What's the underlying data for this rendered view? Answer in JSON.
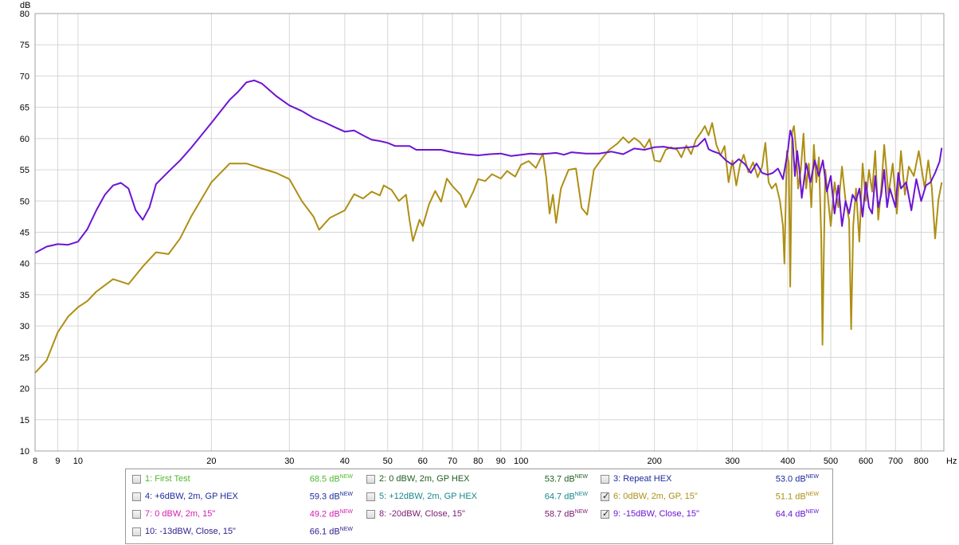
{
  "chart_data": {
    "type": "line",
    "title": "",
    "xlabel": "Hz",
    "ylabel": "dB",
    "x_scale": "log",
    "xlim": [
      8,
      900
    ],
    "ylim": [
      10,
      80
    ],
    "grid": true,
    "y_ticks": [
      "10",
      "15",
      "20",
      "25",
      "30",
      "35",
      "40",
      "45",
      "50",
      "55",
      "60",
      "65",
      "70",
      "75",
      "80"
    ],
    "x_ticks": [
      "8",
      "9",
      "10",
      "20",
      "30",
      "40",
      "50",
      "60",
      "70",
      "80",
      "90",
      "100",
      "200",
      "300",
      "400",
      "500",
      "600",
      "700",
      "800"
    ],
    "legend_placement": "bottom",
    "series": [
      {
        "name": "6: 0dBW, 2m, GP, 15\"",
        "color": "#ae8f14",
        "points": [
          [
            8,
            22.5
          ],
          [
            8.5,
            24.5
          ],
          [
            9,
            29
          ],
          [
            9.5,
            31.5
          ],
          [
            10,
            33
          ],
          [
            10.5,
            34
          ],
          [
            11,
            35.5
          ],
          [
            12,
            37.5
          ],
          [
            13,
            36.7
          ],
          [
            14,
            39.5
          ],
          [
            15,
            41.8
          ],
          [
            16,
            41.5
          ],
          [
            17,
            44
          ],
          [
            18,
            47.5
          ],
          [
            20,
            53
          ],
          [
            22,
            56
          ],
          [
            24,
            56
          ],
          [
            26,
            55.2
          ],
          [
            28,
            54.5
          ],
          [
            30,
            53.5
          ],
          [
            32,
            50
          ],
          [
            34,
            47.5
          ],
          [
            35,
            45.4
          ],
          [
            37,
            47.3
          ],
          [
            40,
            48.5
          ],
          [
            42,
            51.1
          ],
          [
            44,
            50.4
          ],
          [
            46,
            51.5
          ],
          [
            48,
            50.9
          ],
          [
            49,
            52.5
          ],
          [
            51,
            51.8
          ],
          [
            53,
            50
          ],
          [
            55,
            51
          ],
          [
            56,
            47
          ],
          [
            57,
            43.6
          ],
          [
            59,
            47
          ],
          [
            60,
            46
          ],
          [
            62,
            49.5
          ],
          [
            64,
            51.6
          ],
          [
            66,
            49.9
          ],
          [
            68,
            53.6
          ],
          [
            70,
            52.4
          ],
          [
            73,
            51
          ],
          [
            75,
            49
          ],
          [
            78,
            51.5
          ],
          [
            80,
            53.5
          ],
          [
            83,
            53.2
          ],
          [
            86,
            54.3
          ],
          [
            90,
            53.6
          ],
          [
            93,
            54.8
          ],
          [
            97,
            53.9
          ],
          [
            100,
            55.8
          ],
          [
            104,
            56.4
          ],
          [
            108,
            55.3
          ],
          [
            112,
            57.6
          ],
          [
            114,
            53.8
          ],
          [
            116,
            48
          ],
          [
            118,
            51
          ],
          [
            120,
            46.5
          ],
          [
            123,
            52
          ],
          [
            128,
            55
          ],
          [
            133,
            55.2
          ],
          [
            137,
            48.9
          ],
          [
            141,
            47.8
          ],
          [
            146,
            55
          ],
          [
            152,
            56.7
          ],
          [
            158,
            58.2
          ],
          [
            165,
            59.2
          ],
          [
            170,
            60.2
          ],
          [
            175,
            59.3
          ],
          [
            180,
            60.1
          ],
          [
            185,
            59.5
          ],
          [
            190,
            58.5
          ],
          [
            195,
            59.9
          ],
          [
            200,
            56.5
          ],
          [
            206,
            56.3
          ],
          [
            212,
            58.2
          ],
          [
            218,
            58.6
          ],
          [
            225,
            58.2
          ],
          [
            230,
            57
          ],
          [
            236,
            58.9
          ],
          [
            242,
            57.5
          ],
          [
            248,
            59.8
          ],
          [
            255,
            61
          ],
          [
            260,
            62
          ],
          [
            265,
            60.5
          ],
          [
            270,
            62.5
          ],
          [
            276,
            59
          ],
          [
            282,
            57.3
          ],
          [
            288,
            58.8
          ],
          [
            294,
            53
          ],
          [
            300,
            56.5
          ],
          [
            306,
            52.5
          ],
          [
            312,
            55.8
          ],
          [
            318,
            57.4
          ],
          [
            326,
            54.6
          ],
          [
            334,
            56.2
          ],
          [
            342,
            53.8
          ],
          [
            350,
            55.5
          ],
          [
            356,
            59.3
          ],
          [
            362,
            53
          ],
          [
            368,
            52
          ],
          [
            376,
            52.8
          ],
          [
            384,
            50
          ],
          [
            390,
            46
          ],
          [
            393,
            40
          ],
          [
            398,
            58
          ],
          [
            402,
            56
          ],
          [
            405,
            36.3
          ],
          [
            409,
            61
          ],
          [
            413,
            62
          ],
          [
            418,
            58
          ],
          [
            422,
            52
          ],
          [
            428,
            55
          ],
          [
            434,
            60.8
          ],
          [
            440,
            52
          ],
          [
            446,
            56
          ],
          [
            452,
            49
          ],
          [
            458,
            59
          ],
          [
            464,
            53
          ],
          [
            470,
            57
          ],
          [
            476,
            44
          ],
          [
            479,
            27
          ],
          [
            482,
            40
          ],
          [
            486,
            55
          ],
          [
            492,
            51
          ],
          [
            500,
            46
          ],
          [
            510,
            53
          ],
          [
            520,
            49
          ],
          [
            530,
            55.5
          ],
          [
            540,
            50
          ],
          [
            550,
            47
          ],
          [
            556,
            29.5
          ],
          [
            562,
            46
          ],
          [
            570,
            52
          ],
          [
            580,
            43.5
          ],
          [
            590,
            56
          ],
          [
            600,
            50
          ],
          [
            610,
            55
          ],
          [
            620,
            51.5
          ],
          [
            630,
            58
          ],
          [
            640,
            47
          ],
          [
            650,
            52
          ],
          [
            660,
            59
          ],
          [
            675,
            51
          ],
          [
            690,
            56
          ],
          [
            705,
            48
          ],
          [
            720,
            58
          ],
          [
            735,
            51
          ],
          [
            750,
            55.5
          ],
          [
            770,
            54
          ],
          [
            790,
            58
          ],
          [
            815,
            52
          ],
          [
            830,
            56.5
          ],
          [
            845,
            52.2
          ],
          [
            860,
            44
          ],
          [
            875,
            50.2
          ],
          [
            890,
            53
          ]
        ]
      },
      {
        "name": "9: -15dBW, Close, 15\"",
        "color": "#6c14d4",
        "points": [
          [
            8,
            41.7
          ],
          [
            8.5,
            42.7
          ],
          [
            9,
            43.1
          ],
          [
            9.5,
            43
          ],
          [
            10,
            43.5
          ],
          [
            10.5,
            45.5
          ],
          [
            11,
            48.5
          ],
          [
            11.5,
            51
          ],
          [
            12,
            52.5
          ],
          [
            12.5,
            52.9
          ],
          [
            13,
            52
          ],
          [
            13.5,
            48.5
          ],
          [
            14,
            47
          ],
          [
            14.5,
            49
          ],
          [
            15,
            52.7
          ],
          [
            16,
            54.7
          ],
          [
            17,
            56.5
          ],
          [
            18,
            58.5
          ],
          [
            20,
            62.5
          ],
          [
            22,
            66.2
          ],
          [
            23,
            67.5
          ],
          [
            24,
            69
          ],
          [
            25,
            69.3
          ],
          [
            26,
            68.8
          ],
          [
            28,
            66.8
          ],
          [
            30,
            65.3
          ],
          [
            32,
            64.4
          ],
          [
            34,
            63.3
          ],
          [
            36,
            62.6
          ],
          [
            38,
            61.8
          ],
          [
            40,
            61.1
          ],
          [
            42,
            61.3
          ],
          [
            44,
            60.5
          ],
          [
            46,
            59.8
          ],
          [
            48,
            59.6
          ],
          [
            50,
            59.3
          ],
          [
            52,
            58.8
          ],
          [
            54,
            58.8
          ],
          [
            56,
            58.8
          ],
          [
            58,
            58.2
          ],
          [
            60,
            58.2
          ],
          [
            63,
            58.2
          ],
          [
            66,
            58.2
          ],
          [
            70,
            57.8
          ],
          [
            75,
            57.5
          ],
          [
            80,
            57.3
          ],
          [
            85,
            57.5
          ],
          [
            90,
            57.6
          ],
          [
            95,
            57.2
          ],
          [
            100,
            57.4
          ],
          [
            105,
            57.6
          ],
          [
            110,
            57.5
          ],
          [
            115,
            57.6
          ],
          [
            120,
            57.7
          ],
          [
            125,
            57.4
          ],
          [
            130,
            57.8
          ],
          [
            140,
            57.6
          ],
          [
            150,
            57.6
          ],
          [
            160,
            57.9
          ],
          [
            170,
            57.5
          ],
          [
            180,
            58.4
          ],
          [
            190,
            58.2
          ],
          [
            200,
            58.6
          ],
          [
            210,
            58.7
          ],
          [
            220,
            58.4
          ],
          [
            230,
            58.5
          ],
          [
            240,
            58.6
          ],
          [
            250,
            58.8
          ],
          [
            260,
            60
          ],
          [
            265,
            58.3
          ],
          [
            270,
            58
          ],
          [
            280,
            57.6
          ],
          [
            290,
            56.5
          ],
          [
            300,
            55.8
          ],
          [
            310,
            56.7
          ],
          [
            320,
            55.9
          ],
          [
            330,
            54.5
          ],
          [
            340,
            56
          ],
          [
            350,
            54.5
          ],
          [
            360,
            54.2
          ],
          [
            370,
            54.5
          ],
          [
            380,
            55.2
          ],
          [
            390,
            53.5
          ],
          [
            400,
            58
          ],
          [
            405,
            61.3
          ],
          [
            410,
            60
          ],
          [
            415,
            54
          ],
          [
            420,
            58
          ],
          [
            425,
            55
          ],
          [
            430,
            50.5
          ],
          [
            440,
            56
          ],
          [
            450,
            53
          ],
          [
            460,
            56.5
          ],
          [
            470,
            54
          ],
          [
            480,
            56.5
          ],
          [
            490,
            51.5
          ],
          [
            500,
            54
          ],
          [
            510,
            48
          ],
          [
            520,
            52.5
          ],
          [
            530,
            46
          ],
          [
            540,
            50
          ],
          [
            550,
            48
          ],
          [
            560,
            51
          ],
          [
            570,
            50
          ],
          [
            580,
            52
          ],
          [
            590,
            47.5
          ],
          [
            600,
            53
          ],
          [
            610,
            49
          ],
          [
            620,
            48
          ],
          [
            630,
            54
          ],
          [
            640,
            49
          ],
          [
            650,
            51
          ],
          [
            660,
            55
          ],
          [
            670,
            49
          ],
          [
            680,
            52
          ],
          [
            700,
            49
          ],
          [
            710,
            54.5
          ],
          [
            720,
            52
          ],
          [
            740,
            53
          ],
          [
            760,
            48.5
          ],
          [
            780,
            53.5
          ],
          [
            800,
            50
          ],
          [
            820,
            52.5
          ],
          [
            840,
            53
          ],
          [
            860,
            54.5
          ],
          [
            880,
            56.3
          ],
          [
            890,
            58.5
          ]
        ]
      }
    ]
  },
  "legend": {
    "items": [
      {
        "label": "1: First Test",
        "value": "68.5 dB",
        "new": "NEW",
        "color": "#4db82a",
        "checked": false,
        "swatch": false
      },
      {
        "label": "2: 0 dBW, 2m, GP HEX",
        "value": "53.7 dB",
        "new": "NEW",
        "color": "#1e5e22",
        "checked": false,
        "swatch": false
      },
      {
        "label": "3: Repeat HEX",
        "value": "53.0 dB",
        "new": "NEW",
        "color": "#1c2a9e",
        "checked": false,
        "swatch": false
      },
      {
        "label": "4: +6dBW, 2m, GP HEX",
        "value": "59.3 dB",
        "new": "NEW",
        "color": "#1c2a9e",
        "checked": false,
        "swatch": false
      },
      {
        "label": "5: +12dBW, 2m, GP HEX",
        "value": "64.7 dB",
        "new": "NEW",
        "color": "#17888c",
        "checked": false,
        "swatch": false
      },
      {
        "label": "6: 0dBW, 2m, GP, 15\"",
        "value": "51.1 dB",
        "new": "NEW",
        "color": "#ae8f14",
        "checked": true,
        "swatch": true
      },
      {
        "label": "7: 0 dBW, 2m, 15\"",
        "value": "49.2 dB",
        "new": "NEW",
        "color": "#d21fae",
        "checked": false,
        "swatch": false
      },
      {
        "label": "8: -20dBW, Close, 15\"",
        "value": "58.7 dB",
        "new": "NEW",
        "color": "#7a1a6e",
        "checked": false,
        "swatch": false
      },
      {
        "label": "9: -15dBW, Close, 15\"",
        "value": "64.4 dB",
        "new": "NEW",
        "color": "#6c14d4",
        "checked": true,
        "swatch": true
      },
      {
        "label": "10: -13dBW, Close, 15\"",
        "value": "66.1 dB",
        "new": "NEW",
        "color": "#2a1e8a",
        "checked": false,
        "swatch": false
      }
    ]
  }
}
